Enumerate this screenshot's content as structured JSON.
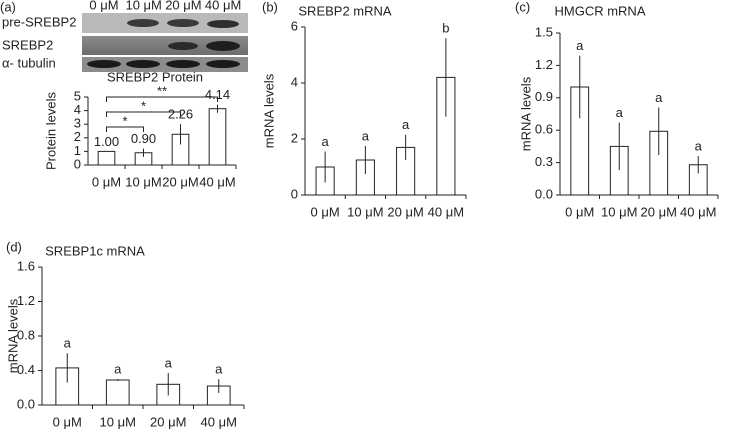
{
  "chart_data": [
    {
      "type": "bar",
      "panel": "(a)",
      "title": "SREBP2 Protein",
      "ylabel": "Protein levels",
      "categories": [
        "0 μM",
        "10 μM",
        "20 μM",
        "40 μM"
      ],
      "values": [
        1.0,
        0.9,
        2.26,
        4.14
      ],
      "value_labels": [
        "1.00",
        "0.90",
        "2.26",
        "4.14"
      ],
      "errors": [
        0,
        0.3,
        0.75,
        0.3
      ],
      "color": "#ffffff",
      "ylim": [
        0,
        5
      ],
      "yticks": [
        0,
        1,
        2,
        3,
        4,
        5
      ],
      "significance_labels": [
        "*",
        "*",
        "**"
      ],
      "blot_lanes": [
        "0 μM",
        "10 μM",
        "20 μM",
        "40 μM"
      ],
      "blot_rows": [
        "pre-SREBP2",
        "SREBP2",
        "α- tubulin"
      ]
    },
    {
      "type": "bar",
      "panel": "(b)",
      "title": "SREBP2 mRNA",
      "ylabel": "mRNA levels",
      "categories": [
        "0 μM",
        "10 μM",
        "20 μM",
        "40 μM"
      ],
      "values": [
        1.0,
        1.25,
        1.7,
        4.2
      ],
      "errors": [
        0.55,
        0.5,
        0.45,
        1.4
      ],
      "color": "#ffffff",
      "group_labels": [
        "a",
        "a",
        "a",
        "b"
      ],
      "ylim": [
        0,
        6
      ],
      "yticks": [
        0,
        2,
        4,
        6
      ]
    },
    {
      "type": "bar",
      "panel": "(c)",
      "title": "HMGCR mRNA",
      "ylabel": "mRNA levels",
      "categories": [
        "0 μM",
        "10 μM",
        "20 μM",
        "40 μM"
      ],
      "values": [
        1.0,
        0.45,
        0.59,
        0.28
      ],
      "errors": [
        0.29,
        0.22,
        0.22,
        0.08
      ],
      "color": "#ffffff",
      "group_labels": [
        "a",
        "a",
        "a",
        "a"
      ],
      "ylim": [
        0,
        1.5
      ],
      "yticks": [
        {
          "value": 0,
          "label": "0.0"
        },
        0.3,
        0.6,
        0.9,
        1.2,
        1.5
      ]
    },
    {
      "type": "bar",
      "panel": "(d)",
      "title": "SREBP1c mRNA",
      "ylabel": "mRNA levels",
      "categories": [
        "0 μM",
        "10 μM",
        "20 μM",
        "40 μM"
      ],
      "values": [
        0.43,
        0.29,
        0.24,
        0.22
      ],
      "errors": [
        0.17,
        0.01,
        0.13,
        0.08
      ],
      "color": "#ffffff",
      "group_labels": [
        "a",
        "a",
        "a",
        "a"
      ],
      "ylim": [
        0,
        1.6
      ],
      "yticks": [
        {
          "value": 0,
          "label": "0.0"
        },
        0.4,
        0.8,
        1.2,
        1.6
      ]
    }
  ]
}
